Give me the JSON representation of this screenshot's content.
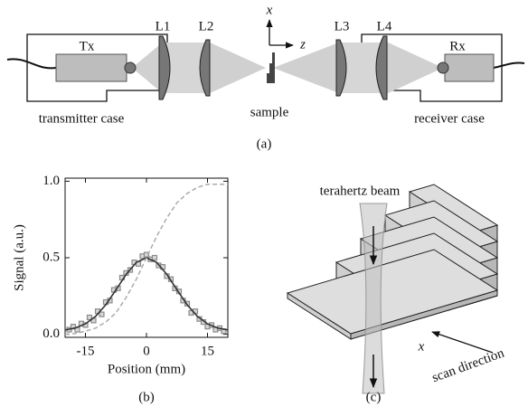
{
  "panel_a": {
    "tx": "Tx",
    "rx": "Rx",
    "lenses": [
      "L1",
      "L2",
      "L3",
      "L4"
    ],
    "axis_x": "x",
    "axis_z": "z",
    "sample": "sample",
    "transmitter_case": "transmitter case",
    "receiver_case": "receiver case",
    "caption": "(a)"
  },
  "chart_data": {
    "type": "line",
    "x_label": "Position (mm)",
    "y_label": "Signal (a.u.)",
    "caption": "(b)",
    "xlim": [
      -20,
      20
    ],
    "ylim": [
      -0.02,
      1.02
    ],
    "xticks": [
      -15,
      0,
      15
    ],
    "yticks": [
      {
        "value": 0,
        "label": "0.0"
      },
      {
        "value": 0.5,
        "label": "0.5"
      },
      {
        "value": 1,
        "label": "1.0"
      }
    ],
    "series": [
      {
        "marker": "square",
        "color": "#8a8a8a",
        "x": [
          -19,
          -18,
          -17,
          -16,
          -15,
          -14,
          -13,
          -12,
          -11,
          -10,
          -9,
          -8,
          -7,
          -6,
          -5,
          -4,
          -3,
          -2,
          -1,
          0,
          1,
          2,
          3,
          4,
          5,
          6,
          7,
          8,
          9,
          10,
          11,
          12,
          13,
          14,
          15,
          16,
          17,
          18,
          19
        ],
        "values": [
          0.03,
          0.05,
          0.03,
          0.07,
          0.06,
          0.11,
          0.09,
          0.15,
          0.13,
          0.21,
          0.22,
          0.29,
          0.3,
          0.37,
          0.4,
          0.42,
          0.47,
          0.46,
          0.51,
          0.52,
          0.49,
          0.5,
          0.45,
          0.44,
          0.38,
          0.36,
          0.3,
          0.28,
          0.22,
          0.2,
          0.14,
          0.15,
          0.1,
          0.08,
          0.05,
          0.06,
          0.03,
          0.04,
          0.02
        ]
      },
      {
        "color": "#333333",
        "x": [
          -20,
          -17.5,
          -15,
          -12.5,
          -10,
          -7.5,
          -5,
          -2.5,
          0,
          2.5,
          5,
          7.5,
          10,
          12.5,
          15,
          17.5,
          20
        ],
        "values": [
          0.028,
          0.041,
          0.068,
          0.117,
          0.193,
          0.29,
          0.392,
          0.47,
          0.5,
          0.47,
          0.392,
          0.29,
          0.193,
          0.117,
          0.068,
          0.041,
          0.028
        ]
      },
      {
        "color": "#aaaaaa",
        "dashed": true,
        "x": [
          -20,
          -17.5,
          -15,
          -12.5,
          -10,
          -7.5,
          -5,
          -2.5,
          0,
          2.5,
          5,
          7.5,
          10,
          12.5,
          15,
          17.5,
          20
        ],
        "values": [
          0.0,
          0.005,
          0.02,
          0.04,
          0.08,
          0.14,
          0.24,
          0.36,
          0.5,
          0.64,
          0.76,
          0.86,
          0.92,
          0.96,
          0.98,
          0.98,
          0.98
        ]
      }
    ]
  },
  "panel_c": {
    "beam": "terahertz beam",
    "axis_x": "x",
    "scan": "scan direction",
    "caption": "(c)"
  }
}
